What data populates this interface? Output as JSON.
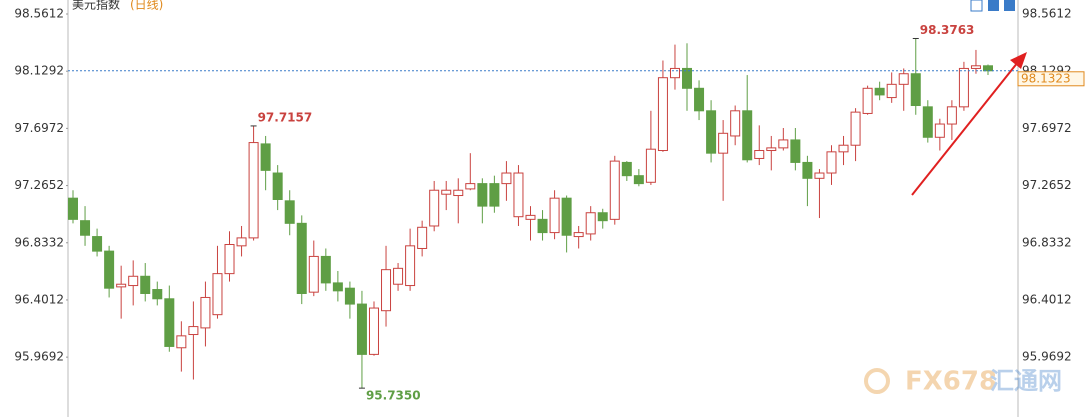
{
  "chart_data": {
    "type": "candlestick",
    "title": "美元指数",
    "subtitle": "(日线)",
    "ylim": [
      95.517,
      98.667
    ],
    "yticks": [
      95.9692,
      96.4012,
      96.8332,
      97.2652,
      97.6972,
      98.1292,
      98.5612
    ],
    "up_color": "#c9423f",
    "down_color": "#5f9e45",
    "ohlc": [
      [
        97.17,
        97.23,
        96.98,
        97.01
      ],
      [
        97.0,
        97.11,
        96.81,
        96.89
      ],
      [
        96.88,
        96.94,
        96.73,
        96.77
      ],
      [
        96.77,
        96.81,
        96.42,
        96.49
      ],
      [
        96.5,
        96.66,
        96.26,
        96.52
      ],
      [
        96.51,
        96.7,
        96.36,
        96.58
      ],
      [
        96.58,
        96.68,
        96.39,
        96.45
      ],
      [
        96.48,
        96.54,
        96.36,
        96.41
      ],
      [
        96.41,
        96.51,
        96.01,
        96.05
      ],
      [
        96.04,
        96.24,
        95.86,
        96.13
      ],
      [
        96.14,
        96.39,
        95.8,
        96.2
      ],
      [
        96.19,
        96.54,
        96.05,
        96.42
      ],
      [
        96.29,
        96.81,
        96.26,
        96.6
      ],
      [
        96.6,
        96.92,
        96.54,
        96.82
      ],
      [
        96.81,
        96.96,
        96.73,
        96.87
      ],
      [
        96.87,
        97.7157,
        96.85,
        97.59
      ],
      [
        97.58,
        97.64,
        97.23,
        97.38
      ],
      [
        97.36,
        97.42,
        97.08,
        97.16
      ],
      [
        97.15,
        97.23,
        96.89,
        96.98
      ],
      [
        96.98,
        97.04,
        96.37,
        96.45
      ],
      [
        96.46,
        96.85,
        96.43,
        96.73
      ],
      [
        96.73,
        96.79,
        96.47,
        96.53
      ],
      [
        96.53,
        96.62,
        96.39,
        96.47
      ],
      [
        96.49,
        96.54,
        96.26,
        96.37
      ],
      [
        96.37,
        96.47,
        95.735,
        95.99
      ],
      [
        95.99,
        96.39,
        95.98,
        96.34
      ],
      [
        96.32,
        96.81,
        96.2,
        96.63
      ],
      [
        96.52,
        96.68,
        96.47,
        96.64
      ],
      [
        96.51,
        96.94,
        96.47,
        96.81
      ],
      [
        96.79,
        97.0,
        96.73,
        96.95
      ],
      [
        96.96,
        97.3,
        96.92,
        97.23
      ],
      [
        97.2,
        97.3,
        97.08,
        97.23
      ],
      [
        97.19,
        97.32,
        96.98,
        97.23
      ],
      [
        97.24,
        97.51,
        97.23,
        97.28
      ],
      [
        97.28,
        97.32,
        96.98,
        97.11
      ],
      [
        97.28,
        97.34,
        97.06,
        97.11
      ],
      [
        97.28,
        97.45,
        97.15,
        97.36
      ],
      [
        97.03,
        97.42,
        96.96,
        97.36
      ],
      [
        97.01,
        97.11,
        96.85,
        97.04
      ],
      [
        97.01,
        97.08,
        96.85,
        96.91
      ],
      [
        96.91,
        97.23,
        96.86,
        97.17
      ],
      [
        97.17,
        97.19,
        96.76,
        96.89
      ],
      [
        96.88,
        96.96,
        96.79,
        96.91
      ],
      [
        96.9,
        97.11,
        96.85,
        97.06
      ],
      [
        97.06,
        97.09,
        96.94,
        97.0
      ],
      [
        97.01,
        97.49,
        96.97,
        97.45
      ],
      [
        97.44,
        97.45,
        97.3,
        97.34
      ],
      [
        97.34,
        97.39,
        97.26,
        97.28
      ],
      [
        97.29,
        97.83,
        97.27,
        97.54
      ],
      [
        97.53,
        98.21,
        97.52,
        98.08
      ],
      [
        98.08,
        98.33,
        97.99,
        98.15
      ],
      [
        98.15,
        98.34,
        97.83,
        98.0
      ],
      [
        98.0,
        98.06,
        97.76,
        97.83
      ],
      [
        97.83,
        97.91,
        97.44,
        97.51
      ],
      [
        97.51,
        97.76,
        97.15,
        97.66
      ],
      [
        97.64,
        97.87,
        97.57,
        97.83
      ],
      [
        97.83,
        98.1,
        97.44,
        97.46
      ],
      [
        97.47,
        97.72,
        97.42,
        97.53
      ],
      [
        97.53,
        97.64,
        97.38,
        97.55
      ],
      [
        97.55,
        97.7,
        97.53,
        97.61
      ],
      [
        97.61,
        97.7,
        97.38,
        97.44
      ],
      [
        97.44,
        97.49,
        97.11,
        97.32
      ],
      [
        97.32,
        97.39,
        97.02,
        97.36
      ],
      [
        97.36,
        97.57,
        97.27,
        97.52
      ],
      [
        97.52,
        97.64,
        97.42,
        97.57
      ],
      [
        97.57,
        97.85,
        97.45,
        97.82
      ],
      [
        97.81,
        98.02,
        97.8,
        98.0
      ],
      [
        98.0,
        98.05,
        97.91,
        97.95
      ],
      [
        97.93,
        98.12,
        97.89,
        98.03
      ],
      [
        98.03,
        98.15,
        97.83,
        98.11
      ],
      [
        98.11,
        98.3763,
        97.8,
        97.87
      ],
      [
        97.86,
        97.91,
        97.59,
        97.63
      ],
      [
        97.63,
        97.77,
        97.53,
        97.73
      ],
      [
        97.73,
        97.91,
        97.61,
        97.86
      ],
      [
        97.86,
        98.2,
        97.83,
        98.15
      ],
      [
        98.15,
        98.29,
        98.11,
        98.17
      ],
      [
        98.17,
        98.18,
        98.1,
        98.1323
      ]
    ],
    "annotations": [
      {
        "value": 97.7157,
        "label": "97.7157",
        "candle": 15
      },
      {
        "value": 95.735,
        "label": "95.7350",
        "candle": 24
      },
      {
        "value": 98.3763,
        "label": "98.3763",
        "candle": 70
      }
    ],
    "last_price": 98.1323,
    "watermark": {
      "brand": "FX678",
      "name": "汇通网"
    }
  }
}
